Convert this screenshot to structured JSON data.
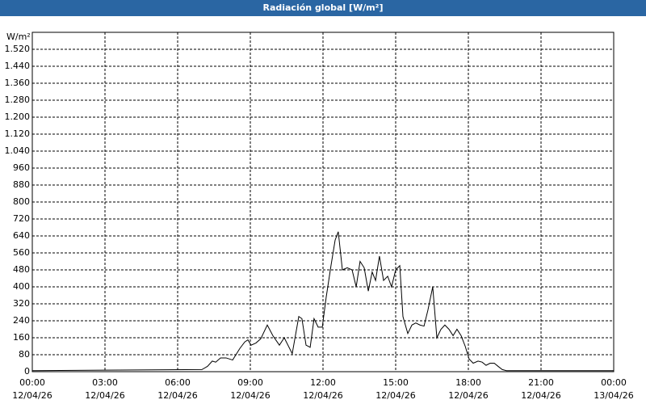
{
  "chart_data": {
    "type": "line",
    "title": "Radiación global [W/m²]",
    "y_unit": "W/m²",
    "color": "#000000",
    "grid": true,
    "x": [
      0,
      7.0,
      7.23,
      7.43,
      7.57,
      7.77,
      8.0,
      8.27,
      8.57,
      8.77,
      8.9,
      9.03,
      9.23,
      9.43,
      9.7,
      9.93,
      10.2,
      10.4,
      10.73,
      11.0,
      11.13,
      11.3,
      11.47,
      11.63,
      11.8,
      11.97,
      12.13,
      12.33,
      12.5,
      12.63,
      12.8,
      13.0,
      13.2,
      13.37,
      13.53,
      13.7,
      13.87,
      14.03,
      14.17,
      14.33,
      14.5,
      14.67,
      14.83,
      15.0,
      15.17,
      15.3,
      15.5,
      15.67,
      15.83,
      16.0,
      16.17,
      16.33,
      16.53,
      16.7,
      16.87,
      17.03,
      17.2,
      17.37,
      17.53,
      17.7,
      17.87,
      18.03,
      18.2,
      18.4,
      18.57,
      18.73,
      18.9,
      19.07,
      19.23,
      19.4,
      19.57,
      24
    ],
    "values": [
      5,
      10,
      25,
      50,
      45,
      65,
      65,
      55,
      110,
      140,
      150,
      125,
      135,
      155,
      220,
      170,
      125,
      160,
      85,
      260,
      250,
      125,
      115,
      250,
      210,
      210,
      350,
      500,
      620,
      660,
      480,
      490,
      480,
      400,
      520,
      490,
      380,
      470,
      430,
      545,
      430,
      450,
      400,
      480,
      500,
      260,
      180,
      220,
      230,
      220,
      215,
      290,
      400,
      160,
      200,
      220,
      200,
      170,
      200,
      170,
      120,
      60,
      40,
      50,
      45,
      30,
      40,
      40,
      25,
      10,
      5,
      5
    ],
    "xlim": [
      0,
      24
    ],
    "xticks": [
      {
        "value": 0,
        "label": "00:00"
      },
      {
        "value": 3,
        "label": "03:00"
      },
      {
        "value": 6,
        "label": "06:00"
      },
      {
        "value": 9,
        "label": "09:00"
      },
      {
        "value": 12,
        "label": "12:00"
      },
      {
        "value": 15,
        "label": "15:00"
      },
      {
        "value": 18,
        "label": "18:00"
      },
      {
        "value": 21,
        "label": "21:00"
      },
      {
        "value": 24,
        "label": "00:00"
      }
    ],
    "xtick_dates": [
      "12/04/26",
      "12/04/26",
      "12/04/26",
      "12/04/26",
      "12/04/26",
      "12/04/26",
      "12/04/26",
      "12/04/26",
      "13/04/26"
    ],
    "ylim": [
      0,
      1600
    ],
    "yticks": [
      0,
      80,
      160,
      240,
      320,
      400,
      480,
      560,
      640,
      720,
      800,
      880,
      960,
      {
        "value": 1040,
        "label": "1.040"
      },
      {
        "value": 1120,
        "label": "1.120"
      },
      {
        "value": 1200,
        "label": "1.200"
      },
      {
        "value": 1280,
        "label": "1.280"
      },
      {
        "value": 1360,
        "label": "1.360"
      },
      {
        "value": 1440,
        "label": "1.440"
      },
      {
        "value": 1520,
        "label": "1.520"
      }
    ]
  }
}
